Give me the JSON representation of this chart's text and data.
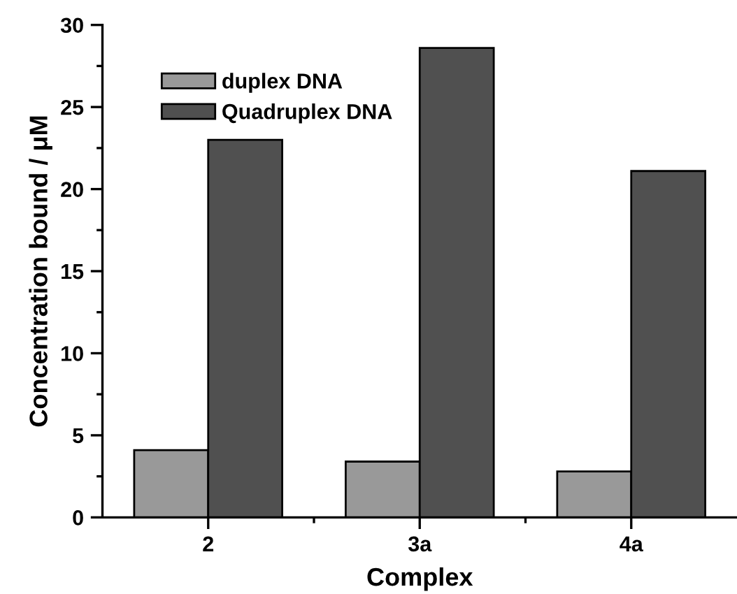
{
  "chart_data": {
    "type": "bar",
    "xlabel": "Complex",
    "ylabel": "Concentration bound / μM",
    "categories": [
      "2",
      "3a",
      "4a"
    ],
    "series": [
      {
        "name": "duplex DNA",
        "color": "#999999",
        "values": [
          4.1,
          3.4,
          2.8
        ]
      },
      {
        "name": "Quadruplex DNA",
        "color": "#505050",
        "values": [
          23.0,
          28.6,
          21.1
        ]
      }
    ],
    "ylim": [
      0,
      30
    ],
    "yticks": [
      0,
      5,
      10,
      15,
      20,
      25,
      30
    ],
    "grid": false,
    "legend": "top left"
  }
}
